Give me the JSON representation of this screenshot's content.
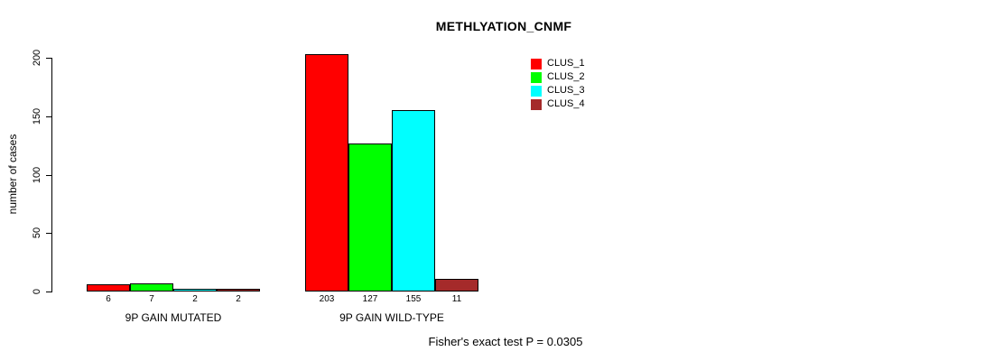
{
  "chart_data": {
    "type": "bar",
    "title": "METHLYATION_CNMF",
    "ylabel": "number of cases",
    "caption": "Fisher's exact test P = 0.0305",
    "categories": [
      "9P GAIN MUTATED",
      "9P GAIN WILD-TYPE"
    ],
    "series": [
      {
        "name": "CLUS_1",
        "color": "#FF0000",
        "values": [
          6,
          203
        ]
      },
      {
        "name": "CLUS_2",
        "color": "#00FF00",
        "values": [
          7,
          127
        ]
      },
      {
        "name": "CLUS_3",
        "color": "#00FFFF",
        "values": [
          2,
          155
        ]
      },
      {
        "name": "CLUS_4",
        "color": "#A52A2A",
        "values": [
          2,
          11
        ]
      }
    ],
    "ylim": [
      0,
      200
    ],
    "yticks": [
      0,
      50,
      100,
      150,
      200
    ],
    "bar_value_labels": [
      [
        "6",
        "7",
        "2",
        "2"
      ],
      [
        "203",
        "127",
        "155",
        "11"
      ]
    ],
    "legend_position": "top-right",
    "grid": false,
    "axis_color": "#000000",
    "text_color": "#000000",
    "background_color": "#FFFFFF"
  }
}
